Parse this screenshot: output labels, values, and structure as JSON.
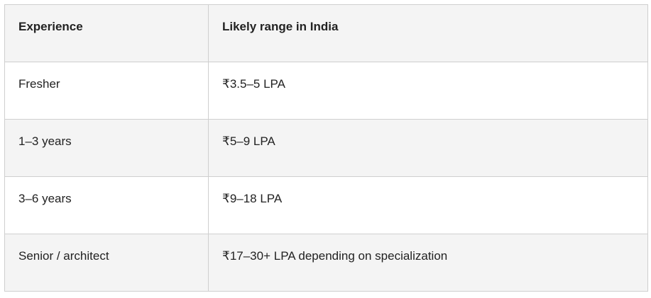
{
  "table": {
    "header": [
      "Experience",
      "Likely range in India"
    ],
    "rows": [
      [
        "Fresher",
        "₹3.5–5 LPA"
      ],
      [
        "1–3 years",
        "₹5–9 LPA"
      ],
      [
        "3–6 years",
        "₹9–18 LPA"
      ],
      [
        "Senior / architect",
        "₹17–30+ LPA depending on specialization"
      ]
    ]
  }
}
